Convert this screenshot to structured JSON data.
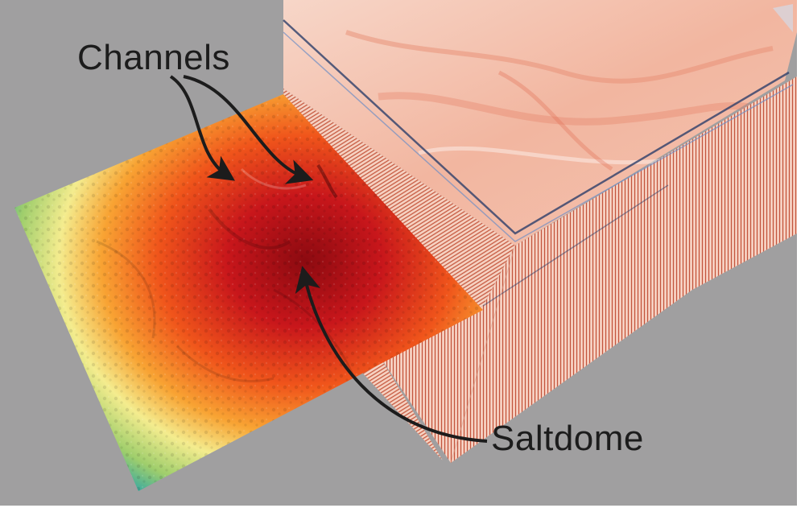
{
  "annotations": {
    "channels": "Channels",
    "saltdome": "Saltdome"
  },
  "colors": {
    "background": "#a09fa0",
    "seismic_light": "#f6c9b8",
    "seismic_mid": "#e98a6f",
    "seismic_dark": "#b23a24",
    "seismic_blue": "#7ea8d6",
    "horizon_low": "#b30d12",
    "horizon_mid": "#f26a1a",
    "horizon_yellow": "#f6ee8c",
    "horizon_high": "#2a5da6",
    "arrow": "#1c1c1c"
  },
  "icons": [
    "curved-arrow-icon"
  ]
}
